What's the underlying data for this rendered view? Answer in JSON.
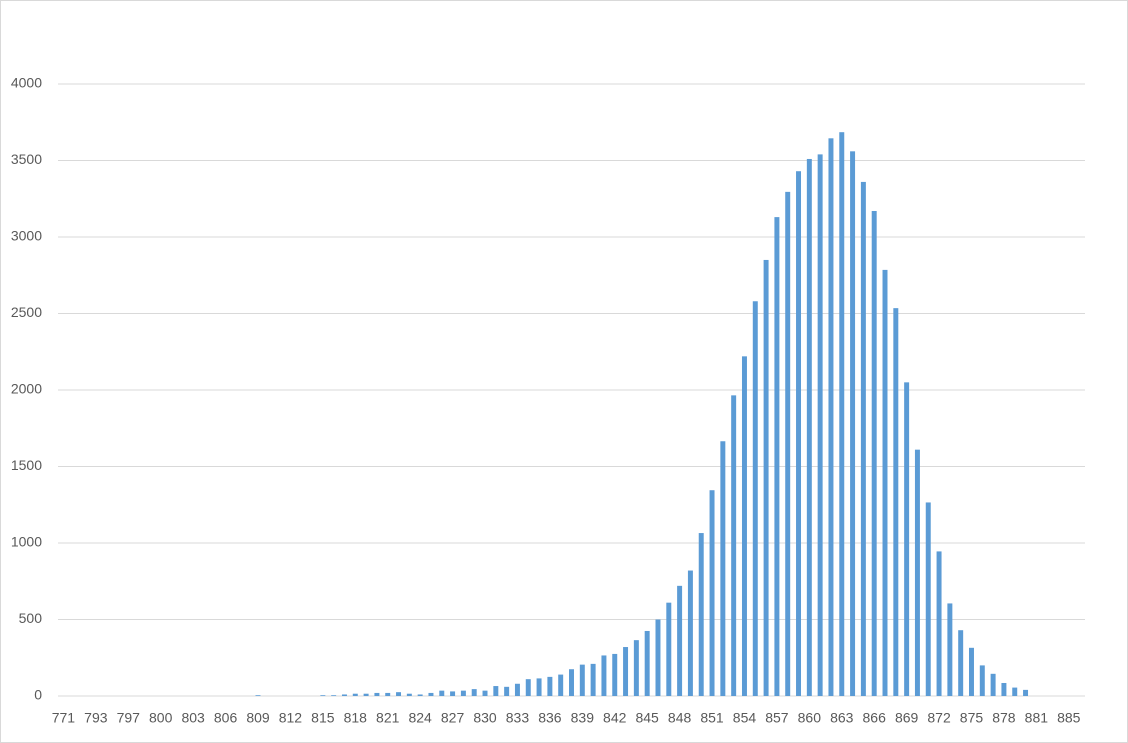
{
  "chart_data": {
    "type": "bar",
    "color": "#5b9bd5",
    "grid": true,
    "categories": [
      771,
      null,
      null,
      793,
      null,
      null,
      797,
      null,
      null,
      800,
      null,
      null,
      803,
      null,
      null,
      806,
      null,
      null,
      809,
      null,
      null,
      812,
      null,
      null,
      815,
      null,
      null,
      818,
      null,
      null,
      821,
      null,
      null,
      824,
      null,
      null,
      827,
      null,
      null,
      830,
      null,
      null,
      833,
      null,
      null,
      836,
      null,
      null,
      839,
      null,
      null,
      842,
      null,
      null,
      845,
      null,
      null,
      848,
      null,
      null,
      851,
      null,
      null,
      854,
      null,
      null,
      857,
      null,
      null,
      860,
      null,
      null,
      863,
      null,
      null,
      866,
      null,
      null,
      869,
      null,
      null,
      872,
      null,
      null,
      875,
      null,
      null,
      878,
      null,
      null,
      881,
      null,
      null,
      885,
      null
    ],
    "values": [
      0,
      0,
      0,
      0,
      0,
      0,
      0,
      0,
      0,
      0,
      0,
      0,
      0,
      0,
      0,
      0,
      0,
      0,
      5,
      0,
      0,
      0,
      0,
      0,
      5,
      5,
      10,
      15,
      15,
      20,
      20,
      25,
      15,
      10,
      20,
      35,
      30,
      35,
      45,
      35,
      65,
      60,
      80,
      110,
      115,
      125,
      140,
      175,
      205,
      210,
      265,
      275,
      320,
      365,
      425,
      500,
      610,
      720,
      820,
      1065,
      1345,
      1665,
      1965,
      2220,
      2580,
      2850,
      3130,
      3295,
      3430,
      3510,
      3540,
      3645,
      3685,
      3560,
      3360,
      3170,
      2785,
      2535,
      2050,
      1610,
      1265,
      945,
      605,
      430,
      315,
      200,
      145,
      85,
      55,
      40,
      0,
      0,
      0,
      0,
      0
    ],
    "ylim": [
      0,
      4000
    ],
    "yticks": [
      0,
      500,
      1000,
      1500,
      2000,
      2500,
      3000,
      3500,
      4000
    ]
  }
}
